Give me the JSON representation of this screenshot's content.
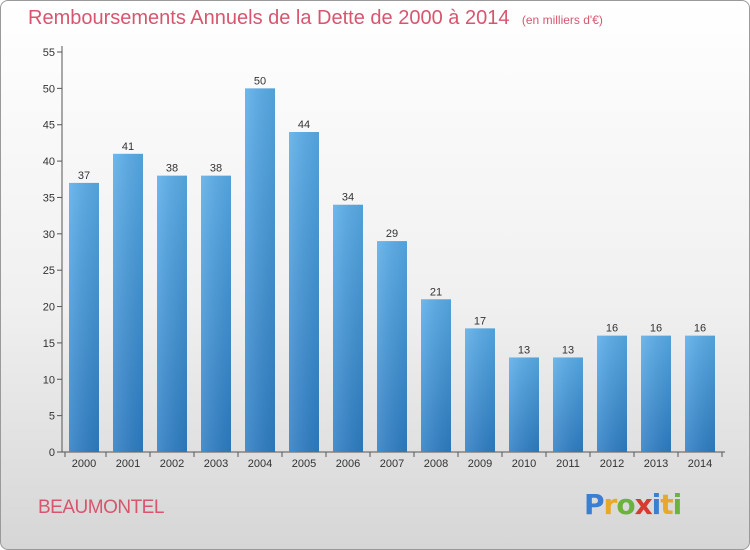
{
  "title": "Remboursements Annuels de la Dette de 2000 à 2014",
  "unit": "(en milliers d'€)",
  "commune": "BEAUMONTEL",
  "logo": {
    "text": "Proxiti",
    "letters": [
      {
        "ch": "P",
        "color": "#3a7fd0"
      },
      {
        "ch": "r",
        "color": "#e8a92b"
      },
      {
        "ch": "o",
        "color": "#6cb33e"
      },
      {
        "ch": "x",
        "color": "#d73a2f"
      },
      {
        "ch": "i",
        "color": "#3a7fd0"
      },
      {
        "ch": "t",
        "color": "#e8a92b"
      },
      {
        "ch": "i",
        "color": "#6cb33e"
      }
    ]
  },
  "colors": {
    "title": "#d7566e",
    "bar_top": "#5aaeea",
    "bar_bottom": "#2f7fc6",
    "axis": "#555555"
  },
  "chart_data": {
    "type": "bar",
    "title": "Remboursements Annuels de la Dette de 2000 à 2014",
    "xlabel": "",
    "ylabel": "",
    "ylim": [
      0,
      55
    ],
    "yticks": [
      0,
      5,
      10,
      15,
      20,
      25,
      30,
      35,
      40,
      45,
      50,
      55
    ],
    "grid": false,
    "categories": [
      "2000",
      "2001",
      "2002",
      "2003",
      "2004",
      "2005",
      "2006",
      "2007",
      "2008",
      "2009",
      "2010",
      "2011",
      "2012",
      "2013",
      "2014"
    ],
    "values": [
      37,
      41,
      38,
      38,
      50,
      44,
      34,
      29,
      21,
      17,
      13,
      13,
      16,
      16,
      16
    ]
  }
}
